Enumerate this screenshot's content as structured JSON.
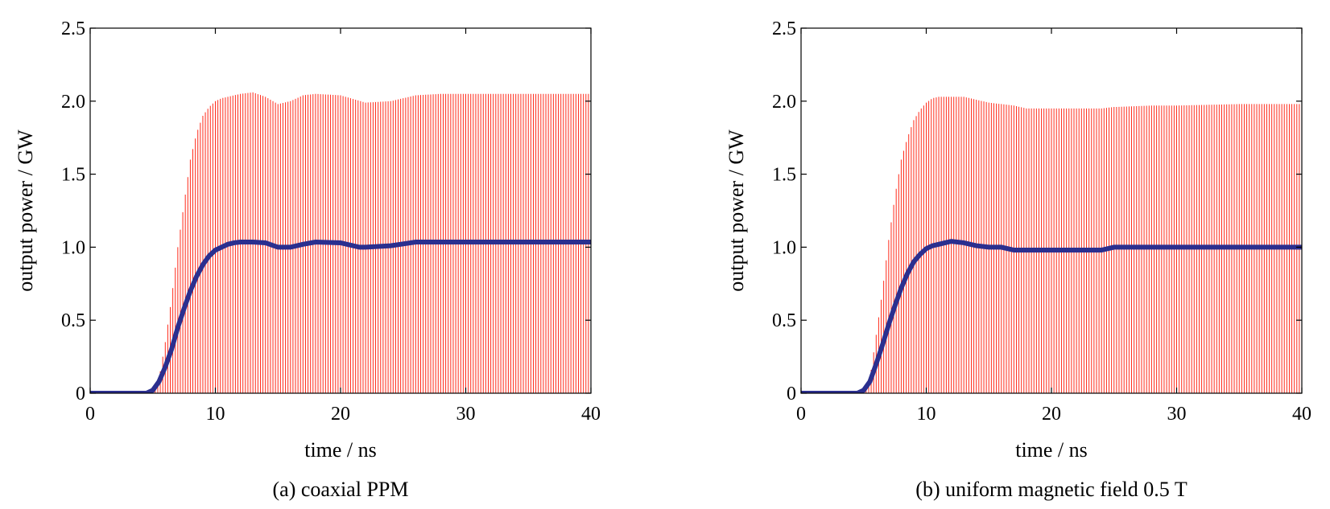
{
  "chart_data": [
    {
      "type": "line",
      "caption": "(a) coaxial PPM",
      "xlabel": "time / ns",
      "ylabel": "output power / GW",
      "xlim": [
        0,
        40
      ],
      "ylim": [
        0,
        2.5
      ],
      "xticks": [
        0,
        10,
        20,
        30,
        40
      ],
      "yticks": [
        0,
        0.5,
        1.0,
        1.5,
        2.0,
        2.5
      ],
      "ytick_labels": [
        "0",
        "0.5",
        "1.0",
        "1.5",
        "2.0",
        "2.5"
      ],
      "colors": {
        "instantaneous": "#ff2a1a",
        "average": "#2b2f8f"
      },
      "series": [
        {
          "role": "instantaneous-envelope",
          "x": [
            0,
            5,
            5.5,
            6,
            6.5,
            7,
            7.5,
            8,
            8.5,
            9,
            9.5,
            10,
            10.5,
            11,
            12,
            13,
            14,
            15,
            16,
            17,
            18,
            20,
            22,
            24,
            26,
            28,
            30,
            35,
            40
          ],
          "y": [
            0,
            0,
            0.1,
            0.35,
            0.65,
            1.0,
            1.3,
            1.6,
            1.78,
            1.9,
            1.96,
            2.0,
            2.02,
            2.03,
            2.05,
            2.06,
            2.03,
            1.98,
            2.0,
            2.04,
            2.05,
            2.04,
            1.99,
            2.0,
            2.04,
            2.05,
            2.05,
            2.05,
            2.05
          ]
        },
        {
          "role": "average",
          "x": [
            0,
            4.5,
            5,
            5.5,
            6,
            6.5,
            7,
            7.5,
            8,
            8.5,
            9,
            9.5,
            10,
            10.5,
            11,
            11.5,
            12,
            13,
            14,
            15,
            16,
            17,
            18,
            20,
            21.5,
            22,
            24,
            26,
            28,
            30,
            35,
            40
          ],
          "y": [
            0,
            0,
            0.02,
            0.08,
            0.18,
            0.3,
            0.45,
            0.58,
            0.7,
            0.8,
            0.88,
            0.94,
            0.98,
            1.0,
            1.02,
            1.03,
            1.035,
            1.035,
            1.03,
            1.0,
            1.0,
            1.02,
            1.035,
            1.03,
            1.0,
            1.0,
            1.01,
            1.035,
            1.035,
            1.035,
            1.035,
            1.035
          ]
        }
      ]
    },
    {
      "type": "line",
      "caption": "(b) uniform magnetic field 0.5 T",
      "xlabel": "time / ns",
      "ylabel": "output power / GW",
      "xlim": [
        0,
        40
      ],
      "ylim": [
        0,
        2.5
      ],
      "xticks": [
        0,
        10,
        20,
        30,
        40
      ],
      "yticks": [
        0,
        0.5,
        1.0,
        1.5,
        2.0,
        2.5
      ],
      "ytick_labels": [
        "0",
        "0.5",
        "1.0",
        "1.5",
        "2.0",
        "2.5"
      ],
      "colors": {
        "instantaneous": "#ff2a1a",
        "average": "#2b2f8f"
      },
      "series": [
        {
          "role": "instantaneous-envelope",
          "x": [
            0,
            5,
            5.5,
            6,
            6.5,
            7,
            7.5,
            8,
            8.5,
            9,
            9.5,
            10,
            10.5,
            11,
            12,
            13,
            14,
            15,
            16,
            17,
            18,
            20,
            22,
            24,
            25,
            28,
            30,
            35,
            40
          ],
          "y": [
            0,
            0,
            0.1,
            0.4,
            0.7,
            1.05,
            1.35,
            1.6,
            1.75,
            1.87,
            1.94,
            1.99,
            2.02,
            2.03,
            2.03,
            2.03,
            2.01,
            1.99,
            1.98,
            1.97,
            1.95,
            1.95,
            1.95,
            1.95,
            1.96,
            1.97,
            1.97,
            1.98,
            1.98
          ]
        },
        {
          "role": "average",
          "x": [
            0,
            4.5,
            5,
            5.5,
            6,
            6.5,
            7,
            7.5,
            8,
            8.5,
            9,
            9.5,
            10,
            10.5,
            11,
            11.5,
            12,
            13,
            14,
            15,
            16,
            17,
            18,
            20,
            22,
            24,
            25,
            28,
            30,
            35,
            40
          ],
          "y": [
            0,
            0,
            0.02,
            0.08,
            0.2,
            0.33,
            0.47,
            0.6,
            0.72,
            0.82,
            0.9,
            0.95,
            0.99,
            1.01,
            1.02,
            1.03,
            1.04,
            1.03,
            1.01,
            1.0,
            1.0,
            0.98,
            0.98,
            0.98,
            0.98,
            0.98,
            1.0,
            1.0,
            1.0,
            1.0,
            1.0
          ]
        }
      ]
    }
  ]
}
